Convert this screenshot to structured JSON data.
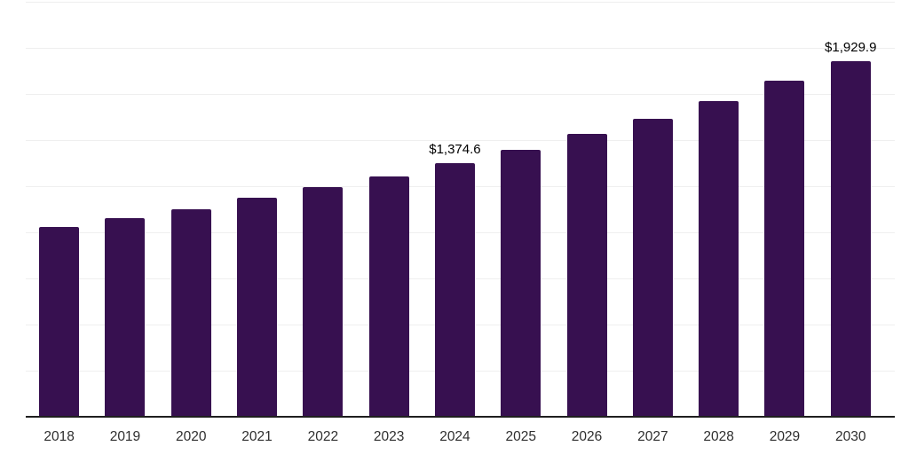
{
  "chart_data": {
    "type": "bar",
    "title": "",
    "xlabel": "",
    "ylabel": "",
    "categories": [
      "2018",
      "2019",
      "2020",
      "2021",
      "2022",
      "2023",
      "2024",
      "2025",
      "2026",
      "2027",
      "2028",
      "2029",
      "2030"
    ],
    "values": [
      1030,
      1078,
      1127,
      1186,
      1243,
      1301,
      1374.6,
      1448,
      1533,
      1617,
      1713,
      1822,
      1929.9
    ],
    "data_labels": [
      null,
      null,
      null,
      null,
      null,
      null,
      "$1,374.6",
      null,
      null,
      null,
      null,
      null,
      "$1,929.9"
    ],
    "ylim": [
      0,
      2250
    ],
    "gridline_step": 250,
    "grid": true,
    "legend": "none",
    "y_tick_labels_shown": false,
    "colors": {
      "bar": "#371050",
      "axis": "#1f1f1f",
      "gridline": "#efefef",
      "value_label": "#000000",
      "tick_label": "#2e2e2e",
      "background": "#ffffff"
    }
  }
}
